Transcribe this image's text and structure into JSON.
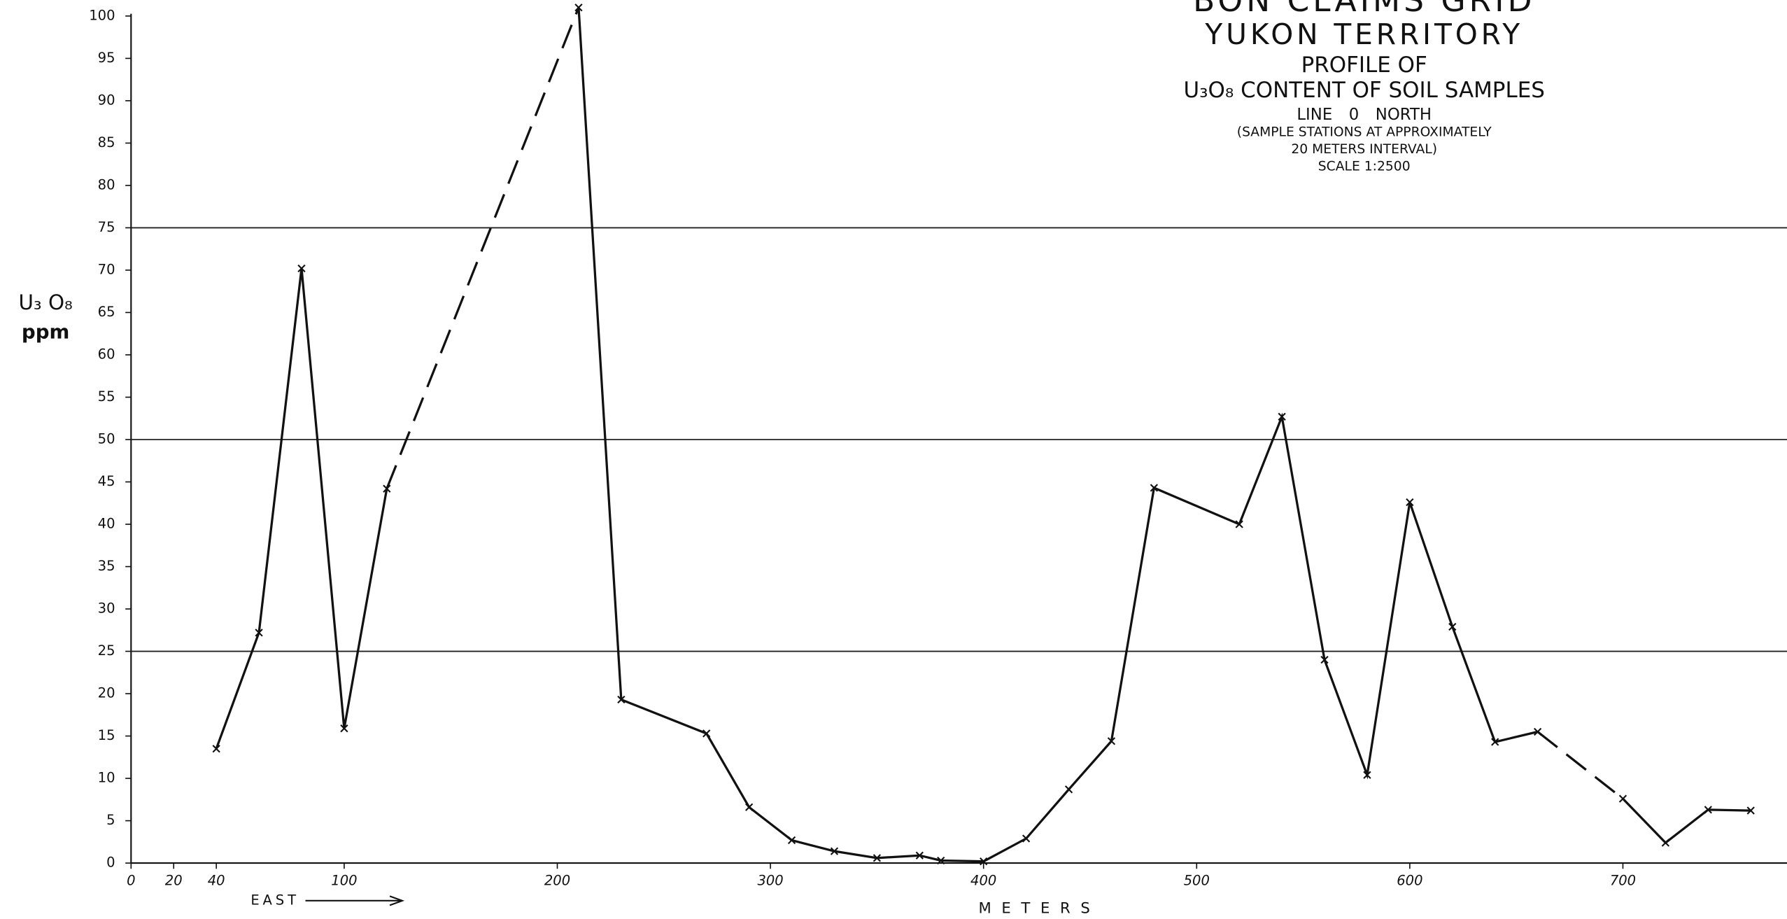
{
  "chart_data": {
    "type": "line",
    "title": [
      "BON CLAIMS GRID",
      "YUKON TERRITORY",
      "PROFILE OF",
      "U₃O₈ CONTENT OF SOIL SAMPLES",
      "LINE 0 NORTH",
      "(SAMPLE STATIONS AT APPROXIMATELY",
      "20 METERS INTERVAL)",
      "SCALE 1:2500"
    ],
    "y_label": [
      "U₃ O₈",
      "ppm"
    ],
    "x_label": "METERS",
    "direction_label": "EAST",
    "x": [
      40,
      60,
      80,
      100,
      120,
      210,
      230,
      270,
      290,
      310,
      330,
      350,
      370,
      380,
      400,
      420,
      440,
      460,
      480,
      520,
      540,
      560,
      580,
      600,
      620,
      640,
      660,
      700,
      720,
      740,
      760
    ],
    "values": [
      13.5,
      27.2,
      70.2,
      15.9,
      44.2,
      101,
      19.3,
      15.3,
      6.6,
      2.7,
      1.4,
      0.6,
      0.9,
      0.3,
      0.2,
      2.9,
      8.7,
      14.4,
      44.3,
      40,
      52.7,
      24,
      10.4,
      42.6,
      27.9,
      14.3,
      15.5,
      7.6,
      2.4,
      6.3,
      6.2
    ],
    "dashed_segments": [
      4,
      26
    ],
    "color": "#111111",
    "xlim": [
      0,
      777
    ],
    "ylim": [
      0,
      100
    ],
    "xticks": [
      0,
      20,
      40,
      100,
      200,
      300,
      400,
      500,
      600,
      700
    ],
    "yticks": [
      0,
      5,
      10,
      15,
      20,
      25,
      30,
      35,
      40,
      45,
      50,
      55,
      60,
      65,
      70,
      75,
      80,
      85,
      90,
      95,
      100
    ],
    "reference_lines": [
      25,
      50,
      75
    ]
  }
}
